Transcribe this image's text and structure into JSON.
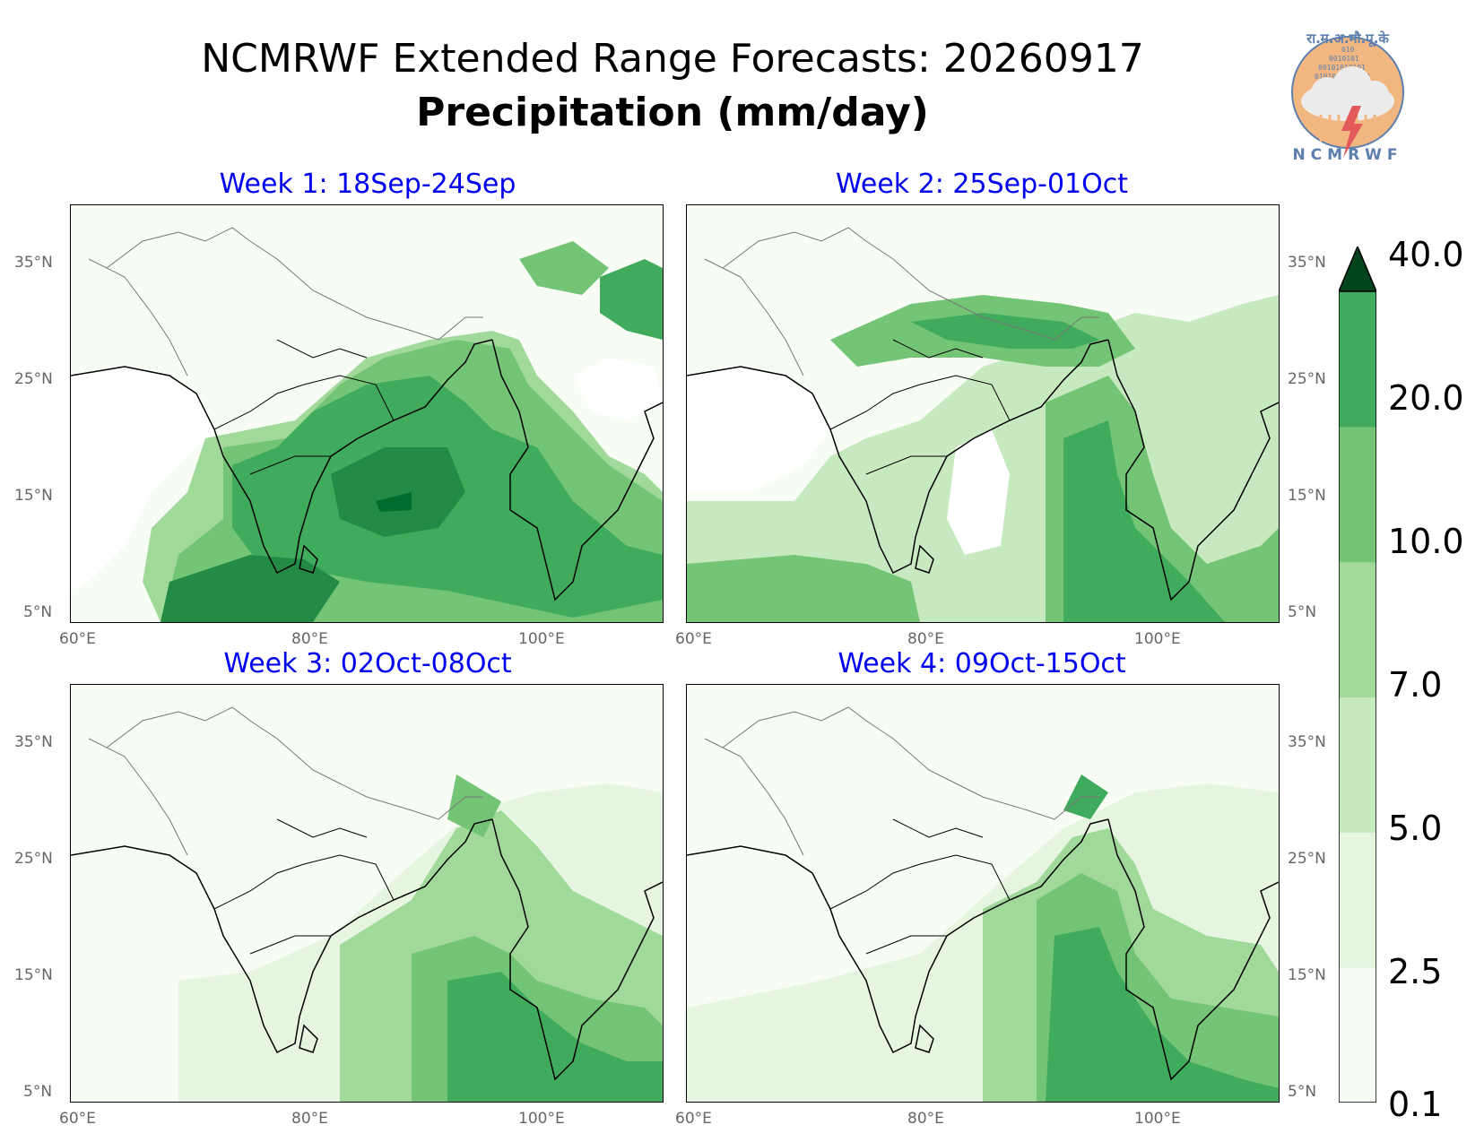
{
  "title": "NCMRWF Extended Range Forecasts: 20260917",
  "subtitle": "Precipitation (mm/day)",
  "logo": {
    "text_top": "रा.म.अ.मौ.पू.के",
    "text_bottom": "NCMRWF",
    "binary": [
      "010",
      "0010101",
      "00101010101",
      "0101010101001",
      "1010101010110"
    ],
    "colors": {
      "disc": "#f2b781",
      "cloud": "#ececec",
      "text": "#5d7fae",
      "bolt": "#e35a5a"
    }
  },
  "panels": [
    {
      "title": "Week 1: 18Sep-24Sep"
    },
    {
      "title": "Week 2: 25Sep-01Oct"
    },
    {
      "title": "Week 3: 02Oct-08Oct"
    },
    {
      "title": "Week 4: 09Oct-15Oct"
    }
  ],
  "axes": {
    "x_ticks": [
      "60°E",
      "80°E",
      "100°E"
    ],
    "y_ticks": [
      "35°N",
      "25°N",
      "15°N",
      "5°N"
    ]
  },
  "colorbar": {
    "labels": [
      "40.0",
      "20.0",
      "10.0",
      "7.0",
      "5.0",
      "2.5",
      "0.1"
    ],
    "colors": [
      "#f7fcf5",
      "#e5f5e0",
      "#c7e9c0",
      "#a1d99b",
      "#74c476",
      "#41ab5d",
      "#238b45",
      "#006d2c",
      "#00441b"
    ],
    "extend": "max"
  }
}
